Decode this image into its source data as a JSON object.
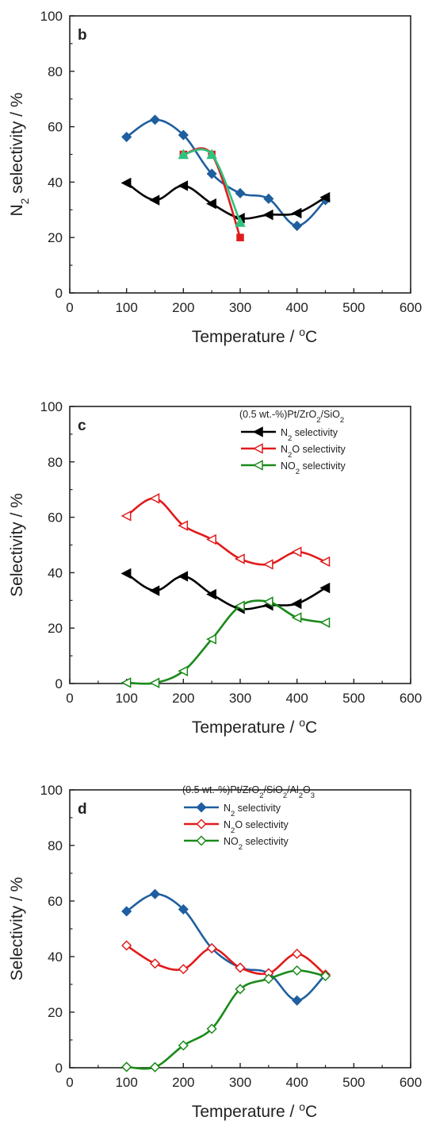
{
  "chart_data": [
    {
      "type": "line",
      "panel_label": "b",
      "xlabel": "Temperature / ",
      "xlabel_unit": "oC",
      "ylabel_main": "N",
      "ylabel_sub": "2",
      "ylabel_rest": " selectivity / %",
      "xlim": [
        0,
        600
      ],
      "ylim": [
        0,
        100
      ],
      "xticks": [
        "0",
        "100",
        "200",
        "300",
        "400",
        "500",
        "600"
      ],
      "yticks": [
        "0",
        "20",
        "40",
        "60",
        "80",
        "100"
      ],
      "grid": false,
      "legend": null,
      "series": [
        {
          "color": "#1f5f9f",
          "marker": "diamond",
          "filled": true,
          "x": [
            100,
            150,
            200,
            250,
            300,
            350,
            400,
            450
          ],
          "y": [
            56.3,
            62.5,
            57,
            43,
            36,
            34,
            24.2,
            33.5
          ]
        },
        {
          "color": "#000000",
          "marker": "triangle-left",
          "filled": true,
          "x": [
            100,
            150,
            200,
            250,
            300,
            350,
            400,
            450
          ],
          "y": [
            39.7,
            33.5,
            38.7,
            32.2,
            27,
            28.2,
            28.8,
            34.5
          ]
        },
        {
          "color": "#e11b1b",
          "marker": "square",
          "filled": true,
          "x": [
            200,
            250,
            300
          ],
          "y": [
            50,
            50,
            20
          ]
        },
        {
          "color": "#2ec27e",
          "marker": "triangle-up",
          "filled": true,
          "x": [
            200,
            250,
            300
          ],
          "y": [
            50,
            50,
            25.5
          ]
        }
      ]
    },
    {
      "type": "line",
      "panel_label": "c",
      "xlabel": "Temperature / ",
      "xlabel_unit": "oC",
      "ylabel_main": "Selectivity / %",
      "ylabel_sub": "",
      "ylabel_rest": "",
      "xlim": [
        0,
        600
      ],
      "ylim": [
        0,
        100
      ],
      "xticks": [
        "0",
        "100",
        "200",
        "300",
        "400",
        "500",
        "600"
      ],
      "yticks": [
        "0",
        "20",
        "40",
        "60",
        "80",
        "100"
      ],
      "grid": false,
      "legend": {
        "placement": "top-right",
        "title_parts": [
          [
            "(0.5 wt.-%)Pt/ZrO",
            ""
          ],
          [
            "2",
            "sub"
          ],
          [
            "/SiO",
            ""
          ],
          [
            "2",
            "sub"
          ]
        ],
        "entries": [
          {
            "parts": [
              [
                "N",
                ""
              ],
              [
                "2",
                "sub"
              ],
              [
                " selectivity",
                ""
              ]
            ]
          },
          {
            "parts": [
              [
                "N",
                ""
              ],
              [
                "2",
                "sub"
              ],
              [
                "O selectivity",
                ""
              ]
            ]
          },
          {
            "parts": [
              [
                "NO",
                ""
              ],
              [
                "2",
                "sub"
              ],
              [
                " selectivity",
                ""
              ]
            ]
          }
        ]
      },
      "series": [
        {
          "color": "#000000",
          "marker": "triangle-left",
          "filled": true,
          "x": [
            100,
            150,
            200,
            250,
            300,
            350,
            400,
            450
          ],
          "y": [
            39.7,
            33.5,
            38.7,
            32.2,
            27,
            28.2,
            28.8,
            34.5
          ]
        },
        {
          "color": "#e11b1b",
          "marker": "triangle-left",
          "filled": false,
          "x": [
            100,
            150,
            200,
            250,
            300,
            350,
            400,
            450
          ],
          "y": [
            60.5,
            66.8,
            57,
            52,
            45,
            43,
            47.5,
            44
          ]
        },
        {
          "color": "#1a8a1a",
          "marker": "triangle-left",
          "filled": false,
          "x": [
            100,
            150,
            200,
            250,
            300,
            350,
            400,
            450
          ],
          "y": [
            0.3,
            0.2,
            4.5,
            16,
            28,
            29.5,
            23.8,
            22
          ]
        }
      ]
    },
    {
      "type": "line",
      "panel_label": "d",
      "xlabel": "Temperature / ",
      "xlabel_unit": "oC",
      "ylabel_main": "Selectivity / %",
      "ylabel_sub": "",
      "ylabel_rest": "",
      "xlim": [
        0,
        600
      ],
      "ylim": [
        0,
        100
      ],
      "xticks": [
        "0",
        "100",
        "200",
        "300",
        "400",
        "500",
        "600"
      ],
      "yticks": [
        "0",
        "20",
        "40",
        "60",
        "80",
        "100"
      ],
      "grid": false,
      "legend": {
        "placement": "top-right",
        "title_parts": [
          [
            "(0.5 wt.-%)Pt/ZrO",
            ""
          ],
          [
            "2",
            "sub"
          ],
          [
            "/SiO",
            ""
          ],
          [
            "2",
            "sub"
          ],
          [
            "/Al",
            ""
          ],
          [
            "2",
            "sub"
          ],
          [
            "O",
            ""
          ],
          [
            "3",
            "sub"
          ]
        ],
        "entries": [
          {
            "parts": [
              [
                "N",
                ""
              ],
              [
                "2",
                "sub"
              ],
              [
                " selectivity",
                ""
              ]
            ]
          },
          {
            "parts": [
              [
                "N",
                ""
              ],
              [
                "2",
                "sub"
              ],
              [
                "O selectivity",
                ""
              ]
            ]
          },
          {
            "parts": [
              [
                "NO",
                ""
              ],
              [
                "2",
                "sub"
              ],
              [
                " selectivity",
                ""
              ]
            ]
          }
        ]
      },
      "series": [
        {
          "color": "#1f5f9f",
          "marker": "diamond",
          "filled": true,
          "x": [
            100,
            150,
            200,
            250,
            300,
            350,
            400,
            450
          ],
          "y": [
            56.3,
            62.5,
            57,
            43,
            36,
            34,
            24.2,
            33.5
          ]
        },
        {
          "color": "#e11b1b",
          "marker": "diamond",
          "filled": false,
          "x": [
            100,
            150,
            200,
            250,
            300,
            350,
            400,
            450
          ],
          "y": [
            44,
            37.5,
            35.5,
            43,
            36,
            34,
            41,
            33.5
          ]
        },
        {
          "color": "#1a8a1a",
          "marker": "diamond",
          "filled": false,
          "x": [
            100,
            150,
            200,
            250,
            300,
            350,
            400,
            450
          ],
          "y": [
            0.3,
            0.2,
            8,
            14,
            28.3,
            32,
            35,
            33
          ]
        }
      ]
    }
  ]
}
